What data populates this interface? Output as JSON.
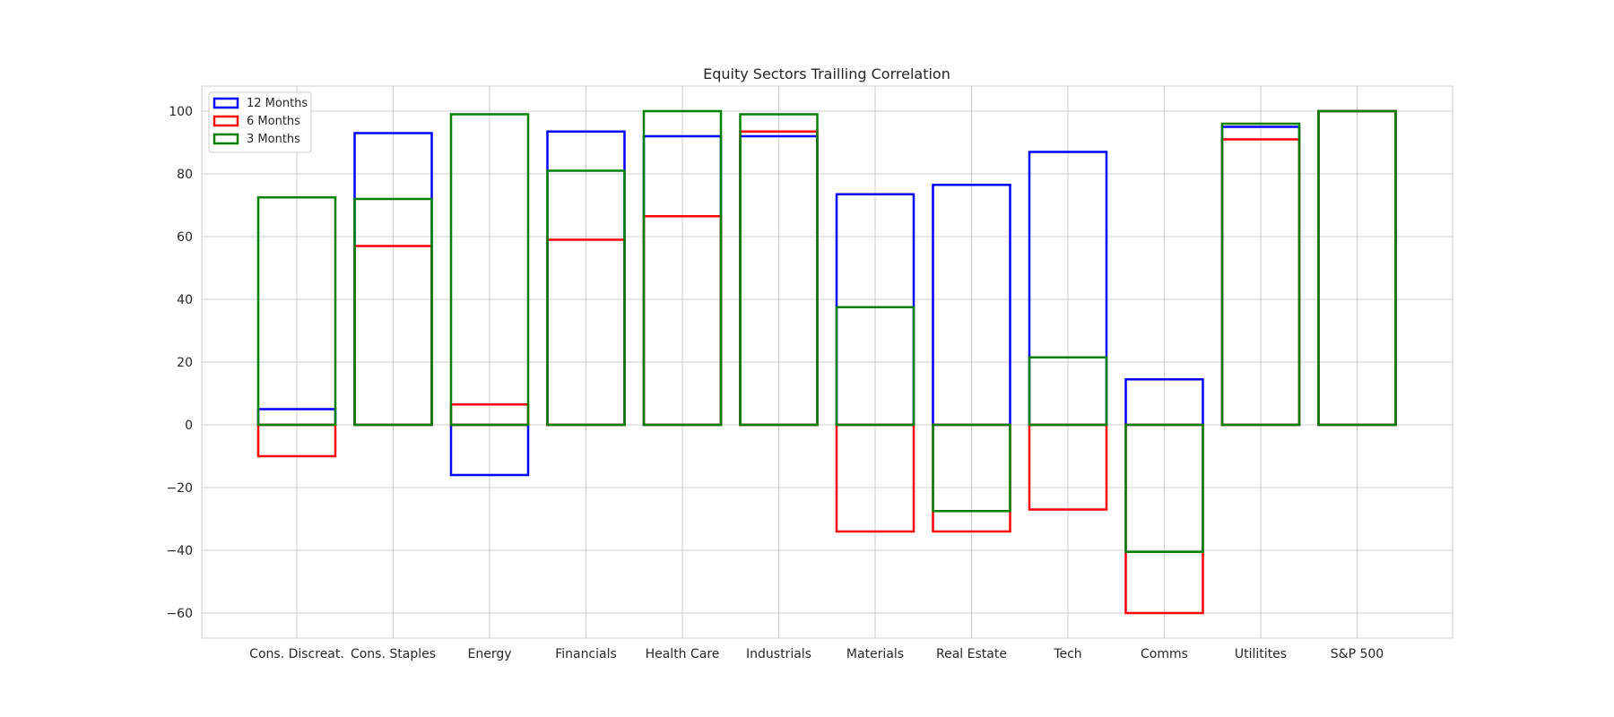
{
  "chart_data": {
    "type": "bar",
    "title": "Equity Sectors Trailling Correlation",
    "xlabel": "",
    "ylabel": "",
    "ylim": [
      -68,
      108
    ],
    "yticks": [
      -60,
      -40,
      -20,
      0,
      20,
      40,
      60,
      80,
      100
    ],
    "grid": true,
    "legend_position": "top-left",
    "bar_style": "outline",
    "categories": [
      "Cons. Discreat.",
      "Cons. Staples",
      "Energy",
      "Financials",
      "Health Care",
      "Industrials",
      "Materials",
      "Real Estate",
      "Tech",
      "Comms",
      "Utilitites",
      "S&P 500"
    ],
    "series": [
      {
        "name": "12 Months",
        "color": "#0000ff",
        "values": [
          5,
          93,
          -16,
          93.5,
          92,
          92,
          73.5,
          76.5,
          87,
          14.5,
          95,
          100
        ]
      },
      {
        "name": "6 Months",
        "color": "#ff0000",
        "values": [
          -10,
          57,
          6.5,
          59,
          66.5,
          93.5,
          -34,
          -34,
          -27,
          -60,
          91,
          100
        ]
      },
      {
        "name": "3 Months",
        "color": "#008000",
        "values": [
          72.5,
          72,
          99,
          81,
          100,
          99,
          37.5,
          -27.5,
          21.5,
          -40.5,
          96,
          100
        ]
      }
    ]
  }
}
